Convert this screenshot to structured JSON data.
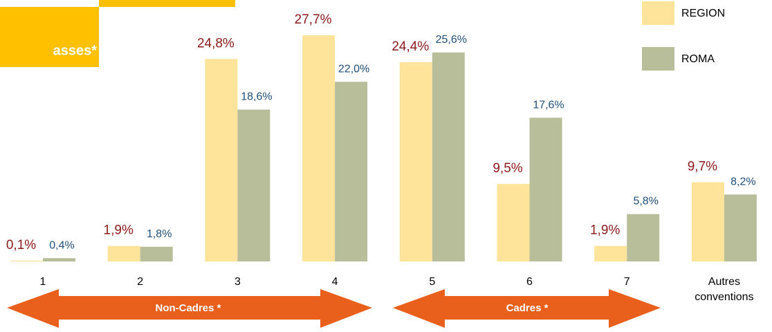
{
  "chart_data": {
    "type": "bar",
    "title": "asses*",
    "categories": [
      "1",
      "2",
      "3",
      "4",
      "5",
      "6",
      "7",
      "Autres conventions"
    ],
    "series": [
      {
        "name": "REGION",
        "color": "#FDE49A",
        "label_color": "#8B1A1A",
        "values": [
          0.1,
          1.9,
          24.8,
          27.7,
          24.4,
          9.5,
          1.9,
          9.7
        ],
        "value_labels": [
          "0,1%",
          "1,9%",
          "24,8%",
          "27,7%",
          "24,4%",
          "9,5%",
          "1,9%",
          "9,7%"
        ]
      },
      {
        "name": "ROMA",
        "color": "#B8BD9A",
        "label_color": "#1F4E79",
        "values": [
          0.4,
          1.8,
          18.6,
          22.0,
          25.6,
          17.6,
          5.8,
          8.2
        ],
        "value_labels": [
          "0,4%",
          "1,8%",
          "18,6%",
          "22,0%",
          "25,6%",
          "17,6%",
          "5,8%",
          "8,2%"
        ]
      }
    ],
    "annotations": [
      "Non-Cadres *",
      "Cadres *"
    ],
    "legend": "top-right"
  }
}
